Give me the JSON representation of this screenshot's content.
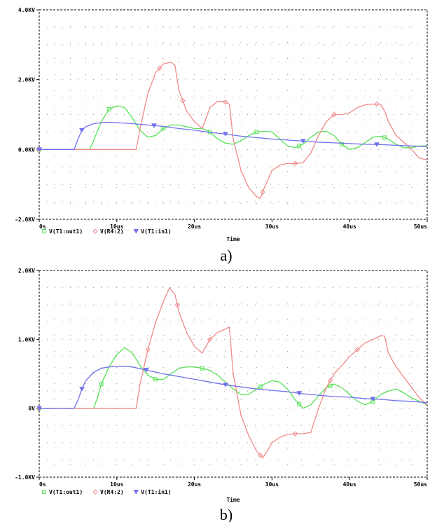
{
  "chart_data": [
    {
      "type": "line",
      "caption": "a)",
      "xlabel": "Time",
      "ylabel": "",
      "xlim": [
        0,
        50
      ],
      "ylim": [
        -2.0,
        4.0
      ],
      "x_ticks": [
        0,
        10,
        20,
        30,
        40,
        50
      ],
      "x_tick_labels": [
        "0s",
        "10us",
        "20us",
        "30us",
        "40us",
        "50us"
      ],
      "y_ticks": [
        -2.0,
        0.0,
        2.0,
        4.0
      ],
      "y_tick_labels": [
        "-2.0KV",
        "0.0KV",
        "2.0KV",
        "4.0KV"
      ],
      "grid": "dotted",
      "legend_placement": "bottom-left",
      "series": [
        {
          "name": "V(T1:out1)",
          "color": "#55e155",
          "marker": "square",
          "x": [
            0,
            6.5,
            7,
            8,
            9,
            10,
            11,
            12,
            13,
            14,
            15,
            16,
            17,
            18,
            19,
            20,
            21,
            22,
            23,
            24,
            25,
            26,
            27,
            28,
            29,
            30,
            31,
            32,
            33,
            34,
            35,
            36,
            37,
            38,
            39,
            40,
            41,
            42,
            43,
            44,
            45,
            46,
            47,
            48,
            49,
            50
          ],
          "y": [
            0,
            0,
            0.25,
            0.8,
            1.15,
            1.25,
            1.2,
            0.9,
            0.55,
            0.35,
            0.4,
            0.6,
            0.7,
            0.7,
            0.65,
            0.6,
            0.6,
            0.5,
            0.3,
            0.18,
            0.15,
            0.25,
            0.4,
            0.5,
            0.52,
            0.5,
            0.3,
            0.1,
            0.05,
            0.15,
            0.35,
            0.5,
            0.52,
            0.4,
            0.15,
            0.0,
            0.05,
            0.2,
            0.35,
            0.38,
            0.3,
            0.15,
            0.05,
            0.05,
            0.1,
            0.1
          ],
          "markers_x": [
            0,
            9,
            16,
            22,
            28,
            33.5,
            39,
            44.5
          ]
        },
        {
          "name": "V(R4:2)",
          "color": "#f08a8a",
          "marker": "diamond",
          "x": [
            0,
            12.5,
            13,
            14,
            15,
            16,
            17,
            17.5,
            18,
            19,
            20,
            21,
            22,
            23,
            23.8,
            24.5,
            25,
            26,
            27,
            28,
            28.5,
            29,
            30,
            31,
            32,
            33,
            34,
            35,
            36,
            37,
            38,
            39,
            40,
            41,
            42,
            43,
            44,
            44.5,
            45,
            46,
            47,
            48,
            49,
            50
          ],
          "y": [
            0,
            0,
            0.6,
            1.6,
            2.2,
            2.45,
            2.5,
            2.4,
            1.7,
            1.1,
            0.8,
            0.6,
            1.2,
            1.38,
            1.38,
            1.3,
            0.3,
            -0.6,
            -1.1,
            -1.35,
            -1.4,
            -1.1,
            -0.6,
            -0.45,
            -0.4,
            -0.4,
            -0.38,
            -0.1,
            0.4,
            0.8,
            1.0,
            1.0,
            1.05,
            1.2,
            1.28,
            1.3,
            1.3,
            1.1,
            0.8,
            0.4,
            0.2,
            0.0,
            -0.25,
            -0.3
          ],
          "markers_x": [
            0,
            15.5,
            18.5,
            24,
            28.8,
            33,
            38,
            43.5
          ]
        },
        {
          "name": "V(T1:in1)",
          "color": "#7070ee",
          "marker": "triangle",
          "x": [
            0,
            4.5,
            5,
            5.5,
            6,
            7,
            8,
            9,
            10,
            12,
            14,
            16,
            18,
            20,
            22,
            24,
            26,
            28,
            30,
            32,
            34,
            36,
            38,
            40,
            42,
            44,
            46,
            48,
            50
          ],
          "y": [
            0,
            0,
            0.3,
            0.55,
            0.65,
            0.74,
            0.77,
            0.78,
            0.77,
            0.74,
            0.7,
            0.66,
            0.6,
            0.55,
            0.49,
            0.44,
            0.38,
            0.34,
            0.3,
            0.27,
            0.24,
            0.21,
            0.19,
            0.17,
            0.15,
            0.14,
            0.12,
            0.1,
            0.08
          ],
          "markers_x": [
            0,
            5.5,
            14.8,
            24,
            34,
            43.5
          ]
        }
      ]
    },
    {
      "type": "line",
      "caption": "b)",
      "xlabel": "Time",
      "ylabel": "",
      "xlim": [
        0,
        50
      ],
      "ylim": [
        -1.0,
        2.0
      ],
      "x_ticks": [
        0,
        10,
        20,
        30,
        40,
        50
      ],
      "x_tick_labels": [
        "0s",
        "10us",
        "20us",
        "30us",
        "40us",
        "50us"
      ],
      "y_ticks": [
        -1.0,
        0.0,
        1.0,
        2.0
      ],
      "y_tick_labels": [
        "-1.0KV",
        "0V",
        "1.0KV",
        "2.0KV"
      ],
      "grid": "dotted",
      "legend_placement": "bottom-left",
      "series": [
        {
          "name": "V(T1:out1)",
          "color": "#55e155",
          "marker": "square",
          "x": [
            0,
            7,
            7.5,
            8,
            9,
            10,
            11,
            12,
            13,
            14,
            15,
            16,
            17,
            18,
            19,
            20,
            21,
            22,
            23,
            24,
            25,
            26,
            27,
            28,
            29,
            30,
            31,
            32,
            33,
            34,
            35,
            36,
            37,
            38,
            39,
            40,
            41,
            42,
            43,
            44,
            45,
            46,
            47,
            48,
            49,
            50
          ],
          "y": [
            0,
            0,
            0.15,
            0.35,
            0.6,
            0.78,
            0.88,
            0.8,
            0.62,
            0.48,
            0.42,
            0.42,
            0.5,
            0.58,
            0.6,
            0.6,
            0.58,
            0.55,
            0.48,
            0.38,
            0.28,
            0.2,
            0.2,
            0.28,
            0.35,
            0.4,
            0.38,
            0.28,
            0.12,
            0.0,
            0.05,
            0.18,
            0.3,
            0.35,
            0.3,
            0.2,
            0.1,
            0.05,
            0.1,
            0.2,
            0.25,
            0.28,
            0.22,
            0.15,
            0.1,
            0.05
          ],
          "markers_x": [
            0,
            8,
            15,
            21,
            28.5,
            33.5,
            37.5,
            43
          ]
        },
        {
          "name": "V(R4:2)",
          "color": "#f08a8a",
          "marker": "diamond",
          "x": [
            0,
            12.5,
            13,
            14,
            15,
            16,
            16.8,
            17.5,
            18,
            19,
            20,
            21,
            22,
            23,
            24,
            24.5,
            25,
            26,
            27,
            28,
            28.8,
            29.5,
            30,
            31,
            32,
            33,
            34,
            35,
            36,
            37,
            38,
            39,
            40,
            41,
            42,
            43,
            44,
            44.5,
            45,
            46,
            47,
            48,
            49,
            50
          ],
          "y": [
            0,
            0,
            0.35,
            0.85,
            1.25,
            1.55,
            1.75,
            1.65,
            1.4,
            1.1,
            0.9,
            0.8,
            1.0,
            1.1,
            1.15,
            1.18,
            0.5,
            -0.1,
            -0.4,
            -0.62,
            -0.72,
            -0.6,
            -0.5,
            -0.42,
            -0.38,
            -0.37,
            -0.37,
            -0.35,
            0.0,
            0.3,
            0.5,
            0.62,
            0.75,
            0.85,
            0.95,
            1.0,
            1.05,
            1.05,
            0.8,
            0.6,
            0.45,
            0.3,
            0.15,
            0.05
          ],
          "markers_x": [
            0,
            14,
            17.8,
            22,
            28.5,
            33,
            37.5,
            41
          ]
        },
        {
          "name": "V(T1:in1)",
          "color": "#7070ee",
          "marker": "triangle",
          "x": [
            0,
            4.5,
            5,
            5.5,
            6,
            7,
            8,
            9,
            10,
            11,
            12,
            14,
            16,
            18,
            20,
            22,
            24,
            26,
            28,
            30,
            32,
            34,
            36,
            38,
            40,
            42,
            44,
            46,
            48,
            50
          ],
          "y": [
            0,
            0,
            0.12,
            0.28,
            0.4,
            0.52,
            0.58,
            0.6,
            0.61,
            0.61,
            0.6,
            0.55,
            0.5,
            0.46,
            0.42,
            0.38,
            0.34,
            0.31,
            0.28,
            0.26,
            0.24,
            0.21,
            0.19,
            0.17,
            0.16,
            0.14,
            0.13,
            0.11,
            0.1,
            0.08
          ],
          "markers_x": [
            0,
            5.5,
            13.8,
            24,
            33.5,
            43
          ]
        }
      ]
    }
  ]
}
